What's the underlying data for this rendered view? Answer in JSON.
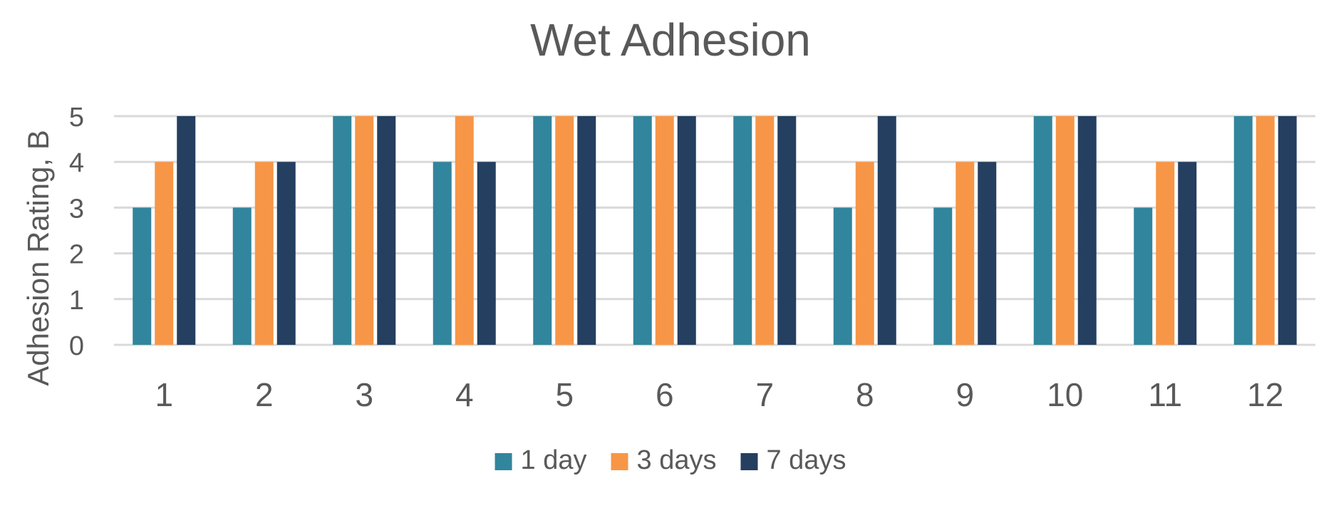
{
  "chart_data": {
    "type": "bar",
    "title": "Wet Adhesion",
    "xlabel": "",
    "ylabel": "Adhesion Rating, B",
    "categories": [
      "1",
      "2",
      "3",
      "4",
      "5",
      "6",
      "7",
      "8",
      "9",
      "10",
      "11",
      "12"
    ],
    "series": [
      {
        "name": "1 day",
        "color": "#31859C",
        "values": [
          3,
          3,
          5,
          4,
          5,
          5,
          5,
          3,
          3,
          5,
          3,
          5
        ]
      },
      {
        "name": "3 days",
        "color": "#F79646",
        "values": [
          4,
          4,
          5,
          5,
          5,
          5,
          5,
          4,
          4,
          5,
          4,
          5
        ]
      },
      {
        "name": "7 days",
        "color": "#243F60",
        "values": [
          5,
          4,
          5,
          4,
          5,
          5,
          5,
          5,
          4,
          5,
          4,
          5
        ]
      }
    ],
    "ylim": [
      0,
      5
    ],
    "yticks": [
      0,
      1,
      2,
      3,
      4,
      5
    ],
    "grid": true,
    "legend_position": "bottom",
    "gridline_color": "#D9D9D9",
    "text_color": "#595959"
  }
}
